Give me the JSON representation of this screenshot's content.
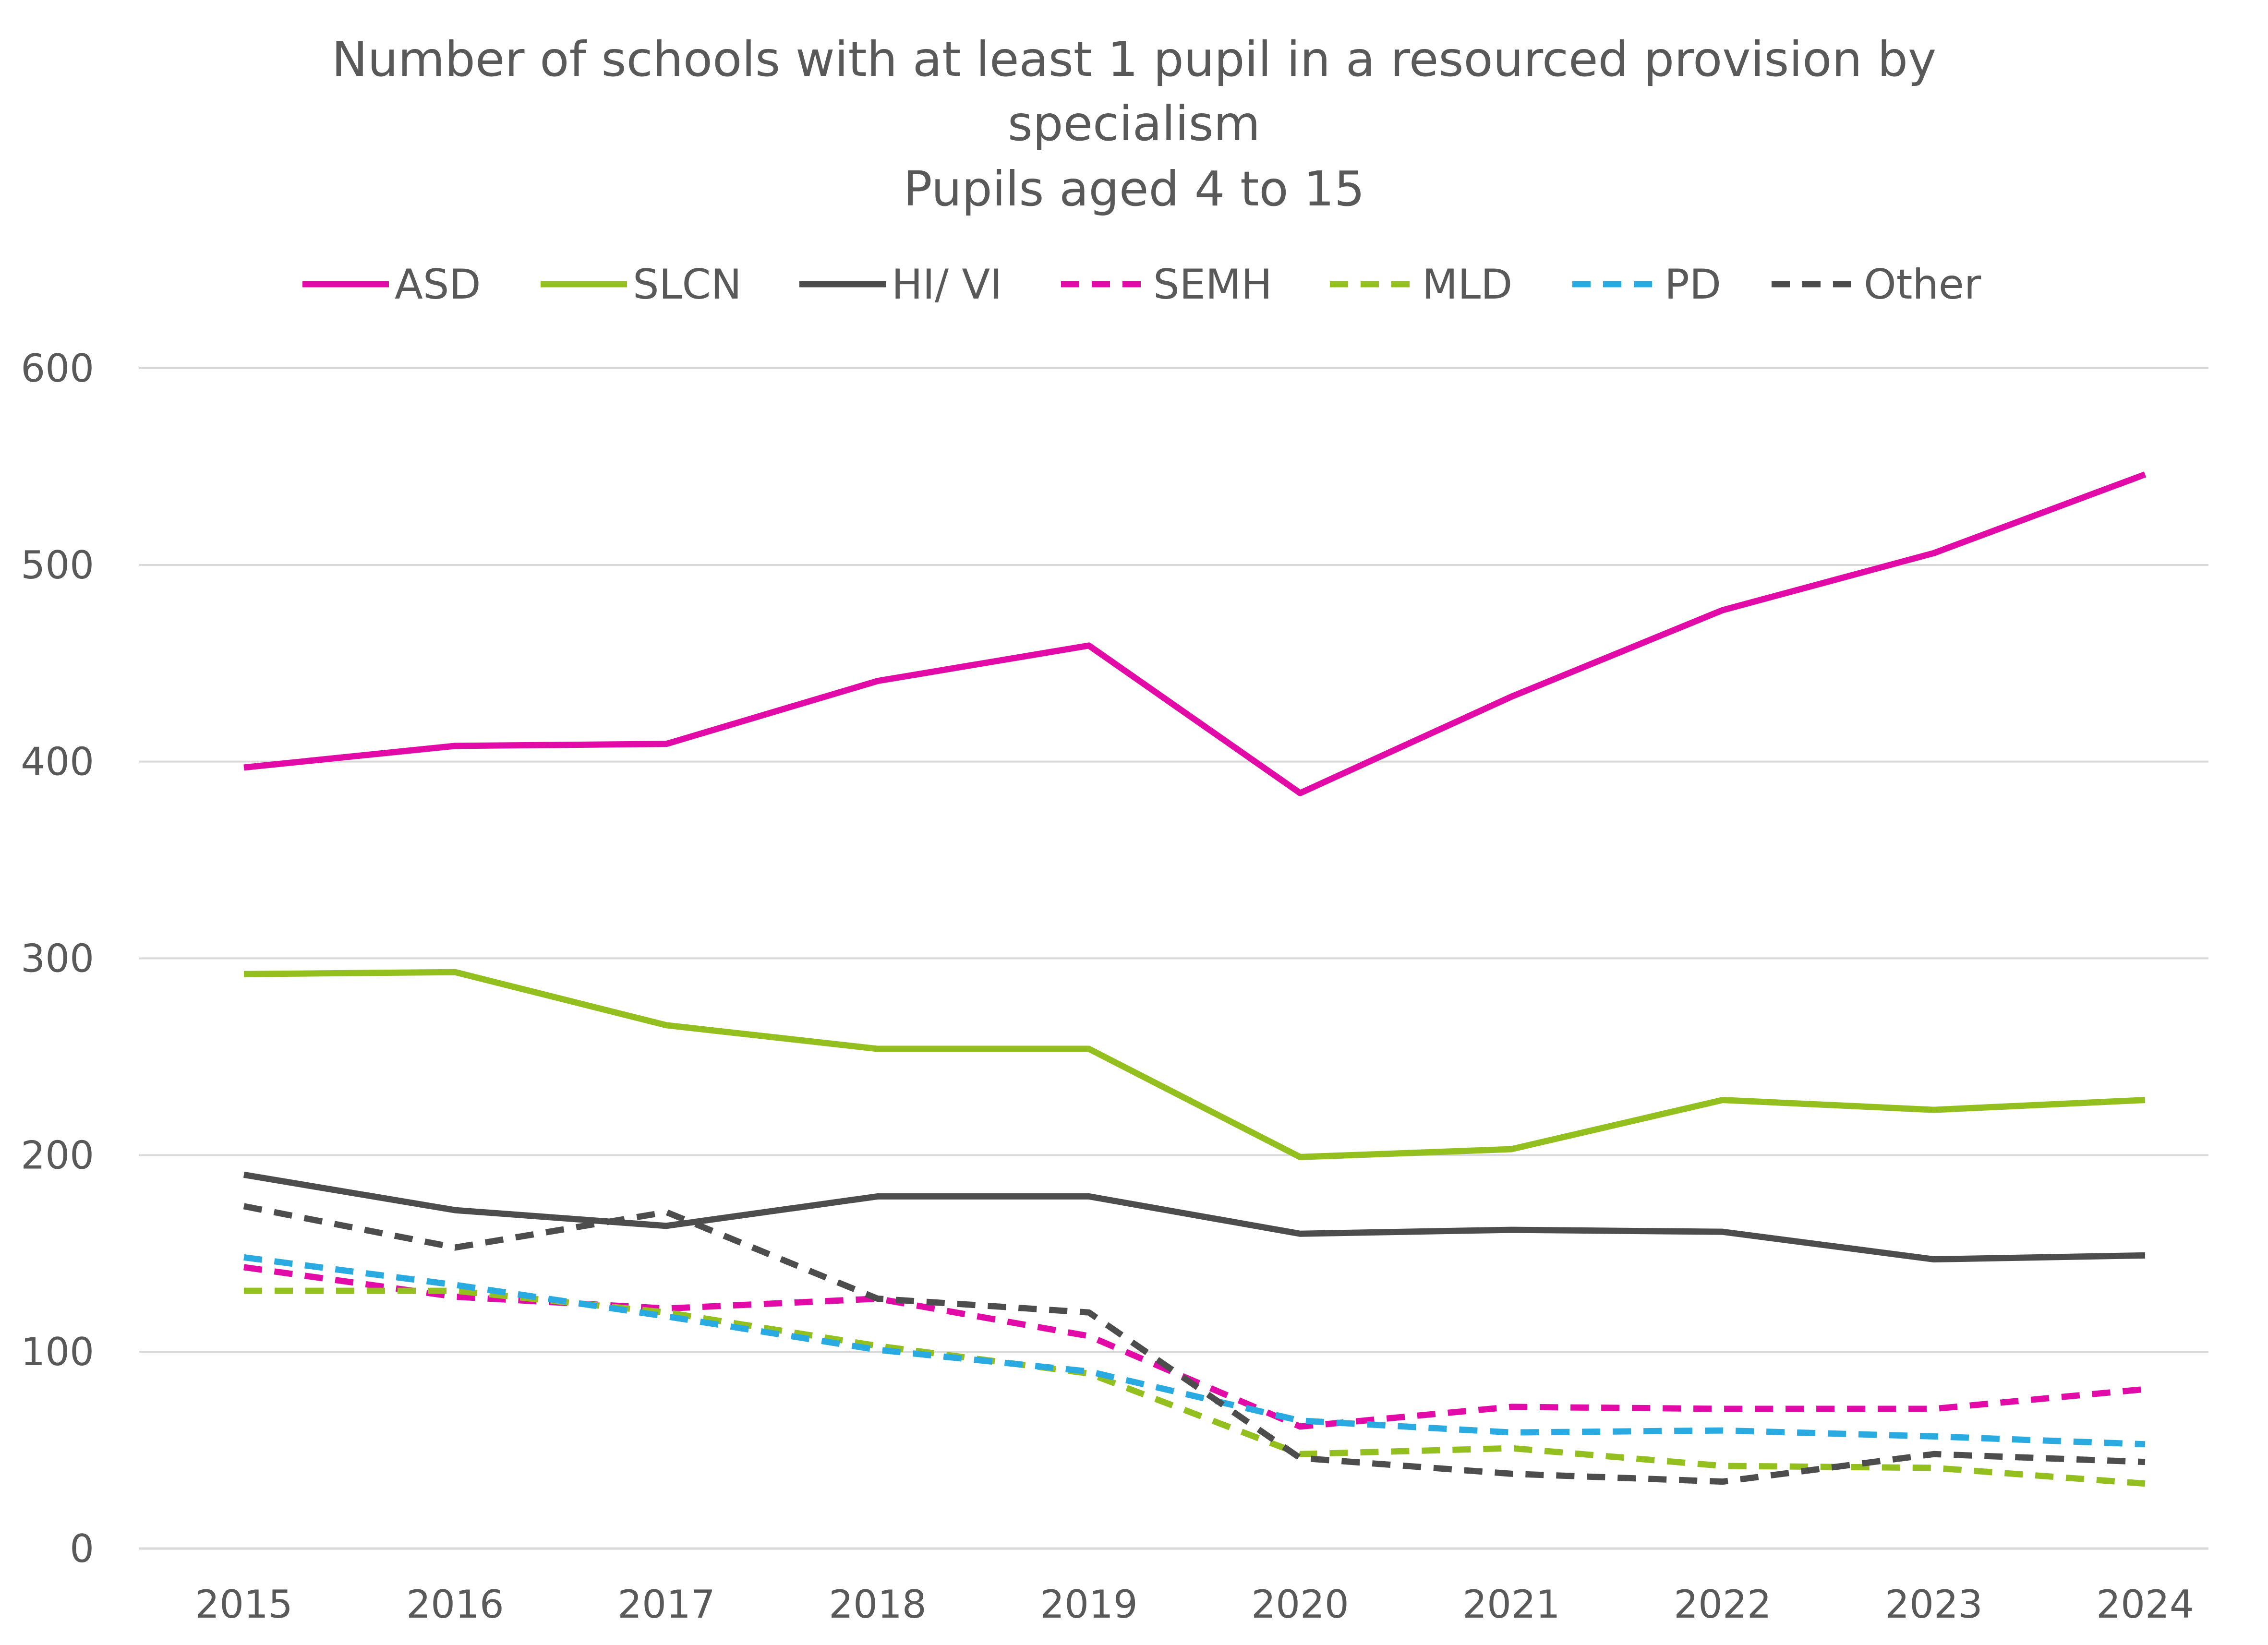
{
  "chart_data": {
    "type": "line",
    "title_lines": [
      "Number of schools with at least 1 pupil in a resourced provision by",
      "specialism",
      "Pupils aged 4 to 15"
    ],
    "xlabel": "",
    "ylabel": "",
    "x": [
      "2015",
      "2016",
      "2017",
      "2018",
      "2019",
      "2020",
      "2021",
      "2022",
      "2023",
      "2024"
    ],
    "ylim": [
      0,
      600
    ],
    "yticks": [
      0,
      100,
      200,
      300,
      400,
      500,
      600
    ],
    "grid": true,
    "legend_position": "top",
    "series": [
      {
        "name": "ASD",
        "color": "#e20ba7",
        "dashed": false,
        "values": [
          397,
          408,
          409,
          441,
          459,
          384,
          433,
          477,
          506,
          546
        ]
      },
      {
        "name": "SLCN",
        "color": "#93c01f",
        "dashed": false,
        "values": [
          292,
          293,
          266,
          254,
          254,
          199,
          203,
          228,
          223,
          228
        ]
      },
      {
        "name": "HI/ VI",
        "color": "#4d4d4d",
        "dashed": false,
        "values": [
          190,
          172,
          164,
          179,
          179,
          160,
          162,
          161,
          147,
          149
        ]
      },
      {
        "name": "SEMH",
        "color": "#e20ba7",
        "dashed": true,
        "values": [
          143,
          128,
          122,
          127,
          108,
          62,
          72,
          71,
          71,
          81
        ]
      },
      {
        "name": "MLD",
        "color": "#93c01f",
        "dashed": true,
        "values": [
          131,
          131,
          120,
          103,
          89,
          48,
          51,
          42,
          41,
          33
        ]
      },
      {
        "name": "PD",
        "color": "#29abe2",
        "dashed": true,
        "values": [
          148,
          134,
          118,
          101,
          90,
          65,
          59,
          60,
          57,
          53
        ]
      },
      {
        "name": "Other",
        "color": "#4d4d4d",
        "dashed": true,
        "values": [
          174,
          153,
          171,
          127,
          120,
          46,
          38,
          34,
          48,
          44
        ]
      }
    ]
  }
}
